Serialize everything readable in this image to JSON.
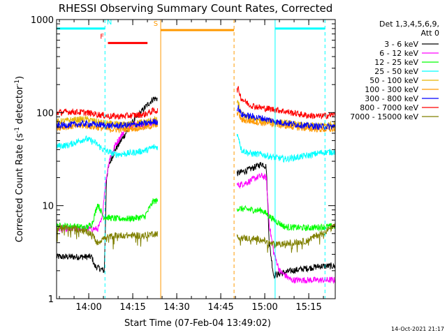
{
  "chart_data": {
    "type": "line",
    "title": "RHESSI Observing Summary Count Rates, Corrected",
    "xlabel": "Start Time (07-Feb-04 13:49:02)",
    "ylabel_main": "Corrected Count Rate (s",
    "ylabel_sup1": "-1",
    "ylabel_mid": " detector",
    "ylabel_sup2": "-1",
    "ylabel_end": ")",
    "x_unit": "minutes since 13:49:02",
    "xlim": [
      0,
      95
    ],
    "ylim": [
      1,
      1000
    ],
    "yscale": "log",
    "x_ticks": [
      {
        "label": "14:00",
        "t": 10.97
      },
      {
        "label": "14:15",
        "t": 25.97
      },
      {
        "label": "14:30",
        "t": 40.97
      },
      {
        "label": "14:45",
        "t": 55.97
      },
      {
        "label": "15:00",
        "t": 70.97
      },
      {
        "label": "15:15",
        "t": 85.97
      }
    ],
    "y_ticks": [
      {
        "label": "1",
        "v": 1
      },
      {
        "label": "10",
        "v": 10
      },
      {
        "label": "100",
        "v": 100
      },
      {
        "label": "1000",
        "v": 1000
      }
    ],
    "legend": {
      "position": "right",
      "header": [
        "Det 1,3,4,5,6,9,",
        "Att 0"
      ]
    },
    "series": [
      {
        "name": "3 - 6 keV",
        "color": "#000000",
        "base": 0.45,
        "p1": [
          [
            0,
            0.45
          ],
          [
            12,
            0.45
          ],
          [
            13,
            0.35
          ],
          [
            16.3,
            0.3
          ],
          [
            17,
            1.3
          ],
          [
            18,
            1.45
          ],
          [
            20,
            1.6
          ],
          [
            23,
            1.75
          ],
          [
            26,
            1.9
          ],
          [
            30,
            2.05
          ],
          [
            33,
            2.15
          ]
        ],
        "p2": [
          [
            62,
            1.35
          ],
          [
            65,
            1.38
          ],
          [
            68,
            1.42
          ],
          [
            70,
            1.45
          ],
          [
            71.5,
            1.42
          ],
          [
            72.5,
            0.6
          ],
          [
            74,
            0.25
          ],
          [
            80,
            0.3
          ],
          [
            90,
            0.35
          ],
          [
            95,
            0.35
          ]
        ]
      },
      {
        "name": "6 - 12 keV",
        "color": "#ff00ff",
        "base": 0.75,
        "p1": [
          [
            0,
            0.75
          ],
          [
            14,
            0.75
          ],
          [
            15.5,
            0.85
          ],
          [
            16.5,
            1.2
          ],
          [
            18,
            1.5
          ],
          [
            20,
            1.65
          ],
          [
            22,
            1.75
          ],
          [
            24,
            1.85
          ],
          [
            27,
            1.88
          ],
          [
            30,
            1.85
          ],
          [
            33,
            1.9
          ]
        ],
        "p2": [
          [
            62,
            1.22
          ],
          [
            65,
            1.25
          ],
          [
            68,
            1.3
          ],
          [
            70,
            1.32
          ],
          [
            71.5,
            1.3
          ],
          [
            72.5,
            0.8
          ],
          [
            74,
            0.5
          ],
          [
            76,
            0.3
          ],
          [
            80,
            0.2
          ],
          [
            90,
            0.2
          ],
          [
            95,
            0.2
          ]
        ]
      },
      {
        "name": "12 - 25 keV",
        "color": "#00ff00",
        "base": 0.78,
        "p1": [
          [
            0,
            0.78
          ],
          [
            6,
            0.78
          ],
          [
            10,
            0.76
          ],
          [
            12,
            0.8
          ],
          [
            13,
            0.9
          ],
          [
            14,
            1.02
          ],
          [
            16,
            0.88
          ],
          [
            20,
            0.86
          ],
          [
            25,
            0.86
          ],
          [
            30,
            0.88
          ],
          [
            33,
            1.05
          ]
        ],
        "p2": [
          [
            62,
            0.97
          ],
          [
            65,
            0.96
          ],
          [
            68,
            0.95
          ],
          [
            70,
            0.95
          ],
          [
            72,
            0.9
          ],
          [
            74,
            0.85
          ],
          [
            78,
            0.77
          ],
          [
            85,
            0.76
          ],
          [
            90,
            0.77
          ],
          [
            95,
            0.78
          ]
        ]
      },
      {
        "name": "25 - 50 keV",
        "color": "#00ffff",
        "base": 1.63,
        "p1": [
          [
            0,
            1.64
          ],
          [
            4,
            1.65
          ],
          [
            8,
            1.7
          ],
          [
            10,
            1.72
          ],
          [
            13,
            1.68
          ],
          [
            16,
            1.6
          ],
          [
            20,
            1.55
          ],
          [
            24,
            1.56
          ],
          [
            28,
            1.58
          ],
          [
            31,
            1.6
          ],
          [
            33,
            1.63
          ]
        ],
        "p2": [
          [
            62,
            1.75
          ],
          [
            63,
            1.6
          ],
          [
            66,
            1.56
          ],
          [
            70,
            1.55
          ],
          [
            74,
            1.52
          ],
          [
            78,
            1.5
          ],
          [
            82,
            1.52
          ],
          [
            86,
            1.54
          ],
          [
            90,
            1.57
          ],
          [
            95,
            1.58
          ]
        ]
      },
      {
        "name": "50 - 100 keV",
        "color": "#e6b400",
        "base": 1.9,
        "p1": [
          [
            0,
            1.9
          ],
          [
            5,
            1.92
          ],
          [
            10,
            1.93
          ],
          [
            14,
            1.9
          ],
          [
            18,
            1.88
          ],
          [
            22,
            1.87
          ],
          [
            26,
            1.88
          ],
          [
            30,
            1.9
          ],
          [
            33,
            1.92
          ]
        ],
        "p2": [
          [
            62,
            2.1
          ],
          [
            63,
            1.98
          ],
          [
            66,
            1.94
          ],
          [
            70,
            1.92
          ],
          [
            75,
            1.9
          ],
          [
            80,
            1.88
          ],
          [
            85,
            1.86
          ],
          [
            90,
            1.86
          ],
          [
            95,
            1.88
          ]
        ]
      },
      {
        "name": "100 - 300 keV",
        "color": "#ff9900",
        "base": 1.84,
        "p1": [
          [
            0,
            1.84
          ],
          [
            5,
            1.85
          ],
          [
            10,
            1.86
          ],
          [
            14,
            1.84
          ],
          [
            18,
            1.82
          ],
          [
            22,
            1.82
          ],
          [
            26,
            1.83
          ],
          [
            30,
            1.84
          ],
          [
            33,
            1.86
          ]
        ],
        "p2": [
          [
            62,
            2.0
          ],
          [
            63,
            1.92
          ],
          [
            66,
            1.91
          ],
          [
            70,
            1.89
          ],
          [
            75,
            1.87
          ],
          [
            80,
            1.85
          ],
          [
            85,
            1.83
          ],
          [
            90,
            1.82
          ],
          [
            95,
            1.82
          ]
        ]
      },
      {
        "name": "300 - 800 keV",
        "color": "#0000ff",
        "base": 1.85,
        "p1": [
          [
            0,
            1.86
          ],
          [
            5,
            1.87
          ],
          [
            10,
            1.88
          ],
          [
            14,
            1.87
          ],
          [
            18,
            1.86
          ],
          [
            22,
            1.86
          ],
          [
            26,
            1.87
          ],
          [
            30,
            1.88
          ],
          [
            33,
            1.9
          ]
        ],
        "p2": [
          [
            62,
            2.05
          ],
          [
            63,
            1.98
          ],
          [
            66,
            1.96
          ],
          [
            70,
            1.94
          ],
          [
            75,
            1.9
          ],
          [
            80,
            1.88
          ],
          [
            85,
            1.86
          ],
          [
            90,
            1.85
          ],
          [
            95,
            1.85
          ]
        ]
      },
      {
        "name": "800 - 7000 keV",
        "color": "#ff0000",
        "base": 2.0,
        "p1": [
          [
            0,
            2.0
          ],
          [
            5,
            2.01
          ],
          [
            10,
            2.0
          ],
          [
            14,
            1.98
          ],
          [
            18,
            1.96
          ],
          [
            22,
            1.96
          ],
          [
            26,
            1.97
          ],
          [
            30,
            1.98
          ],
          [
            33,
            2.02
          ]
        ],
        "p2": [
          [
            62,
            2.25
          ],
          [
            63,
            2.15
          ],
          [
            66,
            2.08
          ],
          [
            70,
            2.05
          ],
          [
            75,
            2.03
          ],
          [
            80,
            2.0
          ],
          [
            85,
            1.97
          ],
          [
            90,
            1.96
          ],
          [
            95,
            1.98
          ]
        ]
      },
      {
        "name": "7000 - 15000 keV",
        "color": "#808000",
        "base": 0.75,
        "p1": [
          [
            0,
            0.76
          ],
          [
            6,
            0.76
          ],
          [
            10,
            0.72
          ],
          [
            12,
            0.7
          ],
          [
            14,
            0.6
          ],
          [
            16,
            0.65
          ],
          [
            20,
            0.68
          ],
          [
            25,
            0.68
          ],
          [
            30,
            0.68
          ],
          [
            33,
            0.7
          ]
        ],
        "p2": [
          [
            62,
            0.66
          ],
          [
            65,
            0.65
          ],
          [
            68,
            0.64
          ],
          [
            70,
            0.64
          ],
          [
            72,
            0.6
          ],
          [
            75,
            0.58
          ],
          [
            80,
            0.6
          ],
          [
            85,
            0.62
          ],
          [
            90,
            0.7
          ],
          [
            95,
            0.78
          ]
        ]
      }
    ],
    "flags": [
      {
        "label": "",
        "color": "#00ffff",
        "y": 800,
        "x1": 0,
        "x2": 16.5,
        "labelx": null
      },
      {
        "label": "N",
        "color": "#00ffff",
        "y": 800,
        "x1": 74.5,
        "x2": 91.5,
        "labelx": 18
      },
      {
        "label": "F",
        "color": "#ff0000",
        "y": 560,
        "x1": 17.5,
        "x2": 31,
        "labelx": 15.5
      },
      {
        "label": "S",
        "color": "#ff9900",
        "y": 770,
        "x1": 35.5,
        "x2": 60.5,
        "labelx": 33.8
      }
    ],
    "vlines": [
      {
        "x": 16.5,
        "color": "#00ffff",
        "dash": true
      },
      {
        "x": 74.5,
        "color": "#00ffff",
        "dash": false
      },
      {
        "x": 91.5,
        "color": "#00ffff",
        "dash": true
      },
      {
        "x": 35.5,
        "color": "#ff9900",
        "dash": false
      },
      {
        "x": 60.5,
        "color": "#ff9900",
        "dash": true
      }
    ]
  },
  "timestamp": "14-Oct-2021 21:17"
}
